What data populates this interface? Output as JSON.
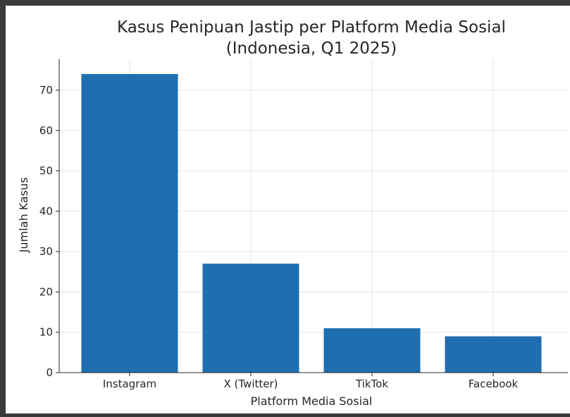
{
  "chart_data": {
    "type": "bar",
    "title_line1": "Kasus Penipuan Jastip per Platform Media Sosial",
    "title_line2": "(Indonesia, Q1 2025)",
    "xlabel": "Platform Media Sosial",
    "ylabel": "Jumlah Kasus",
    "categories": [
      "Instagram",
      "X (Twitter)",
      "TikTok",
      "Facebook"
    ],
    "values": [
      74,
      27,
      11,
      9
    ],
    "ylim": [
      0,
      78
    ],
    "yticks": [
      0,
      10,
      20,
      30,
      40,
      50,
      60,
      70
    ],
    "grid": true,
    "bar_color": "#1f6eb0"
  }
}
